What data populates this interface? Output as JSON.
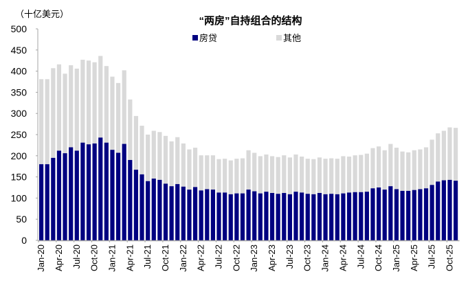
{
  "chart_data": {
    "type": "bar",
    "stacked": true,
    "title": "“两房”自持组合的结构",
    "ylabel": "（十亿美元）",
    "xlabel": "",
    "ylim": [
      0,
      500
    ],
    "yticks": [
      0,
      50,
      100,
      150,
      200,
      250,
      300,
      350,
      400,
      450,
      500
    ],
    "legend_position": "top",
    "grid": false,
    "x_tick_labels": [
      "Jan-20",
      "Apr-20",
      "Jul-20",
      "Oct-20",
      "Jan-21",
      "Apr-21",
      "Jul-21",
      "Oct-21",
      "Jan-22",
      "Apr-22",
      "Jul-22",
      "Oct-22",
      "Jan-23",
      "Apr-23",
      "Jul-23",
      "Oct-23",
      "Jan-24",
      "Apr-24",
      "Jul-24",
      "Oct-24",
      "Jan-25",
      "Apr-25",
      "Jul-25",
      "Oct-25"
    ],
    "categories": [
      "Jan-20",
      "Feb-20",
      "Mar-20",
      "Apr-20",
      "May-20",
      "Jun-20",
      "Jul-20",
      "Aug-20",
      "Sep-20",
      "Oct-20",
      "Nov-20",
      "Dec-20",
      "Jan-21",
      "Feb-21",
      "Mar-21",
      "Apr-21",
      "May-21",
      "Jun-21",
      "Jul-21",
      "Aug-21",
      "Sep-21",
      "Oct-21",
      "Nov-21",
      "Dec-21",
      "Jan-22",
      "Feb-22",
      "Mar-22",
      "Apr-22",
      "May-22",
      "Jun-22",
      "Jul-22",
      "Aug-22",
      "Sep-22",
      "Oct-22",
      "Nov-22",
      "Dec-22",
      "Jan-23",
      "Feb-23",
      "Mar-23",
      "Apr-23",
      "May-23",
      "Jun-23",
      "Jul-23",
      "Aug-23",
      "Sep-23",
      "Oct-23",
      "Nov-23",
      "Dec-23",
      "Jan-24",
      "Feb-24",
      "Mar-24",
      "Apr-24",
      "May-24",
      "Jun-24",
      "Jul-24",
      "Aug-24",
      "Sep-24",
      "Oct-24",
      "Nov-24",
      "Dec-24",
      "Jan-25",
      "Feb-25",
      "Mar-25",
      "Apr-25",
      "May-25",
      "Jun-25",
      "Jul-25",
      "Aug-25",
      "Sep-25",
      "Oct-25",
      "Nov-25"
    ],
    "series": [
      {
        "name": "房贷",
        "color": "#000080",
        "values": [
          180,
          180,
          195,
          212,
          206,
          220,
          212,
          231,
          227,
          229,
          243,
          231,
          214,
          207,
          228,
          190,
          167,
          156,
          140,
          146,
          143,
          134,
          128,
          133,
          127,
          120,
          126,
          118,
          121,
          120,
          113,
          113,
          109,
          111,
          111,
          120,
          116,
          111,
          115,
          112,
          110,
          112,
          109,
          115,
          113,
          110,
          109,
          112,
          109,
          110,
          109,
          111,
          113,
          114,
          114,
          115,
          123,
          125,
          120,
          128,
          121,
          117,
          117,
          119,
          121,
          123,
          131,
          139,
          142,
          143,
          141
        ]
      },
      {
        "name": "其他",
        "color": "#d9d9d9",
        "values": [
          201,
          201,
          212,
          204,
          188,
          194,
          194,
          196,
          198,
          192,
          193,
          181,
          173,
          165,
          174,
          143,
          127,
          115,
          110,
          113,
          113,
          113,
          106,
          111,
          102,
          95,
          93,
          83,
          80,
          81,
          79,
          80,
          80,
          82,
          83,
          93,
          91,
          88,
          88,
          87,
          87,
          89,
          87,
          88,
          85,
          83,
          83,
          84,
          84,
          84,
          84,
          88,
          85,
          87,
          88,
          90,
          95,
          97,
          93,
          100,
          98,
          93,
          91,
          94,
          94,
          97,
          107,
          114,
          117,
          124,
          125
        ]
      }
    ]
  },
  "header": {
    "unit_label": "（十亿美元）",
    "title": "“两房”自持组合的结构"
  },
  "legend": {
    "items": [
      {
        "label": "房贷",
        "color": "#000080"
      },
      {
        "label": "其他",
        "color": "#d9d9d9"
      }
    ]
  },
  "colors": {
    "axis": "#a6a6a6",
    "text": "#000000"
  }
}
